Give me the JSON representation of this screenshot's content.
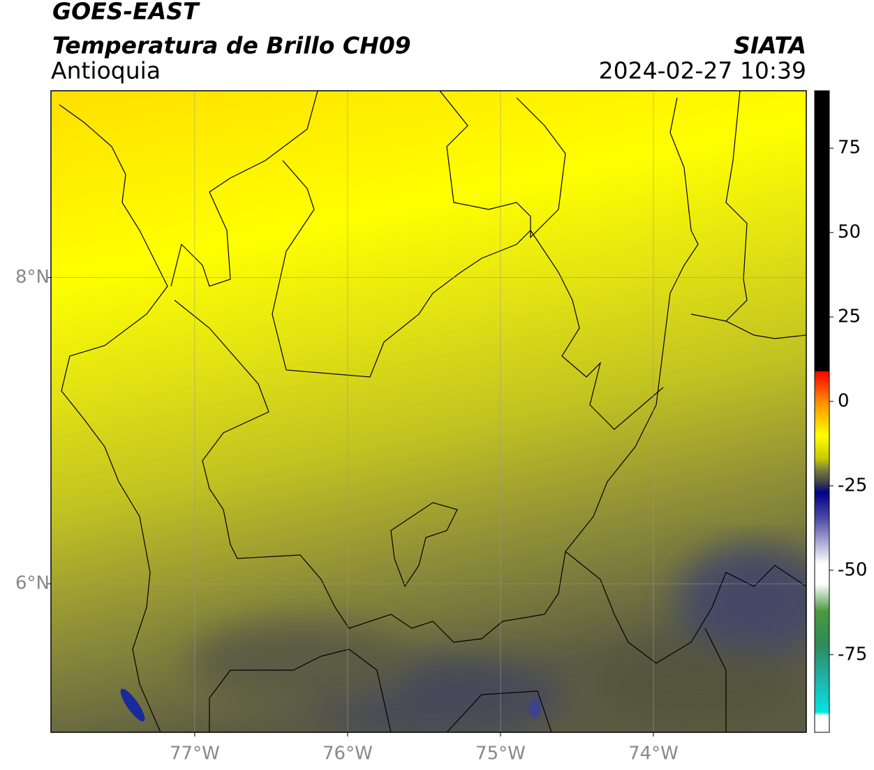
{
  "header": {
    "title": "GOES-EAST",
    "subtitle": "Temperatura de Brillo CH09",
    "source": "SIATA",
    "region": "Antioquia",
    "datetime": "2024-02-27 10:39"
  },
  "map": {
    "lonlim": [
      -77.94,
      -73.0
    ],
    "latlim": [
      5.03,
      9.22
    ],
    "lon_ticks": [
      {
        "value": -77,
        "label": "77°W"
      },
      {
        "value": -76,
        "label": "76°W"
      },
      {
        "value": -75,
        "label": "75°W"
      },
      {
        "value": -74,
        "label": "74°W"
      }
    ],
    "lat_ticks": [
      {
        "value": 8,
        "label": "8°N"
      },
      {
        "value": 6,
        "label": "6°N"
      }
    ],
    "grid": true
  },
  "colorbar": {
    "lim": [
      -98,
      92
    ],
    "ticks": [
      75,
      50,
      25,
      0,
      -25,
      -50,
      -75
    ],
    "stops": [
      {
        "value": 92,
        "color": "#000000"
      },
      {
        "value": 9,
        "color": "#000000"
      },
      {
        "value": 8.9,
        "color": "#ff0000"
      },
      {
        "value": 0,
        "color": "#ff8c00"
      },
      {
        "value": -10,
        "color": "#ffff00"
      },
      {
        "value": -17,
        "color": "#c8c800"
      },
      {
        "value": -20,
        "color": "#808040"
      },
      {
        "value": -24,
        "color": "#404048"
      },
      {
        "value": -27,
        "color": "#00008b"
      },
      {
        "value": -35,
        "color": "#5050a8"
      },
      {
        "value": -48,
        "color": "#ffffff"
      },
      {
        "value": -54,
        "color": "#ffffff"
      },
      {
        "value": -62,
        "color": "#4a9a40"
      },
      {
        "value": -72,
        "color": "#2e8b57"
      },
      {
        "value": -82,
        "color": "#20b2aa"
      },
      {
        "value": -92,
        "color": "#00e5e0"
      },
      {
        "value": -93,
        "color": "#ffffff"
      },
      {
        "value": -98,
        "color": "#ffffff"
      }
    ]
  }
}
